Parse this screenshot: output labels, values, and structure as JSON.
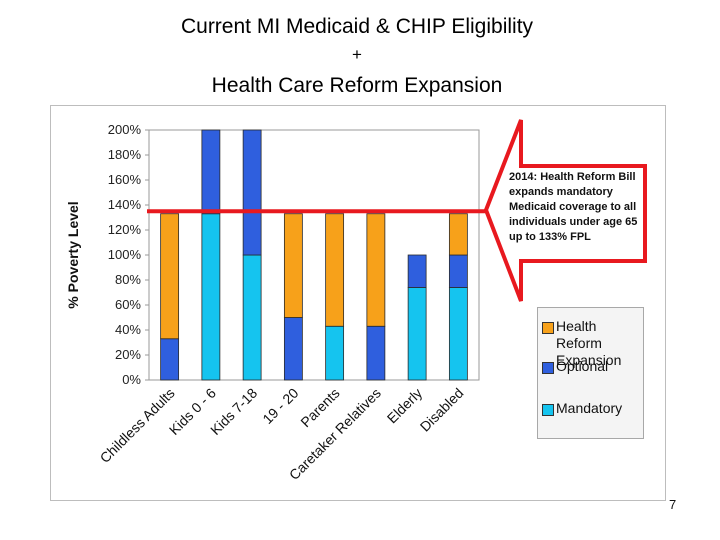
{
  "slide": {
    "title_line1": "Current MI Medicaid & CHIP Eligibility",
    "title_line2": "+",
    "title_line3": "Health Care Reform Expansion",
    "page_number": "7"
  },
  "callout": {
    "text": "2014: Health Reform Bill expands mandatory Medicaid coverage to all individuals under age 65 up to 133% FPL",
    "color": "#e8191f"
  },
  "legend": {
    "items": [
      {
        "label": "Health Reform Expansion",
        "color": "#f7a11a"
      },
      {
        "label": "Optional",
        "color": "#2f5fde"
      },
      {
        "label": "Mandatory",
        "color": "#15c4ef"
      }
    ]
  },
  "chart_data": {
    "type": "bar",
    "stacked": true,
    "ylabel": "% Poverty Level",
    "xlabel": "",
    "ylim": [
      0,
      200
    ],
    "yticks": [
      "0%",
      "20%",
      "40%",
      "60%",
      "80%",
      "100%",
      "120%",
      "140%",
      "160%",
      "180%",
      "200%"
    ],
    "categories": [
      "Childless Adults",
      "Kids 0 - 6",
      "Kids 7-18",
      "19 - 20",
      "Parents",
      "Caretaker Relatives",
      "Elderly",
      "Disabled"
    ],
    "series": [
      {
        "name": "Mandatory",
        "color": "#15c4ef",
        "values": [
          0,
          133,
          100,
          0,
          43,
          0,
          74,
          74
        ]
      },
      {
        "name": "Optional",
        "color": "#2f5fde",
        "values": [
          33,
          67,
          100,
          50,
          0,
          43,
          26,
          26
        ]
      },
      {
        "name": "Health Reform Expansion",
        "color": "#f7a11a",
        "values": [
          100,
          0,
          0,
          83,
          90,
          90,
          0,
          33
        ]
      }
    ],
    "reference_line": {
      "value": 135,
      "color": "#e8191f"
    }
  }
}
